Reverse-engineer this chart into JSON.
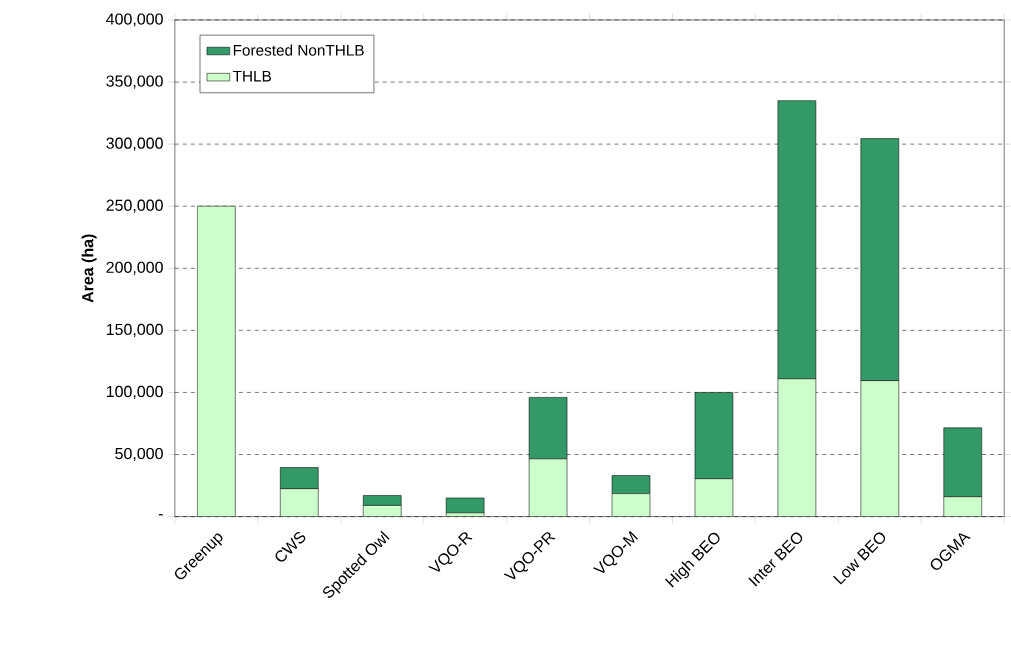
{
  "chart_data": {
    "type": "bar",
    "stacked": true,
    "ylabel": "Area (ha)",
    "categories": [
      "Greenup",
      "CWS",
      "Spotted Owl",
      "VQO-R",
      "VQO-PR",
      "VQO-M",
      "High BEO",
      "Inter BEO",
      "Low BEO",
      "OGMA"
    ],
    "series": [
      {
        "name": "THLB",
        "color": "#ccffcc",
        "values": [
          250000,
          22500,
          9000,
          3000,
          46500,
          18500,
          30500,
          111000,
          109500,
          16000
        ]
      },
      {
        "name": "Forested NonTHLB",
        "color": "#339966",
        "values": [
          0,
          17000,
          8000,
          12000,
          49500,
          14500,
          69500,
          224000,
          195000,
          55500
        ]
      }
    ],
    "ylim": [
      0,
      400000
    ],
    "yticks": [
      {
        "value": 0,
        "label": "-"
      },
      {
        "value": 50000,
        "label": "50,000"
      },
      {
        "value": 100000,
        "label": "100,000"
      },
      {
        "value": 150000,
        "label": "150,000"
      },
      {
        "value": 200000,
        "label": "200,000"
      },
      {
        "value": 250000,
        "label": "250,000"
      },
      {
        "value": 300000,
        "label": "300,000"
      },
      {
        "value": 350000,
        "label": "350,000"
      },
      {
        "value": 400000,
        "label": "400,000"
      }
    ],
    "grid": "y",
    "legend": "top left"
  }
}
